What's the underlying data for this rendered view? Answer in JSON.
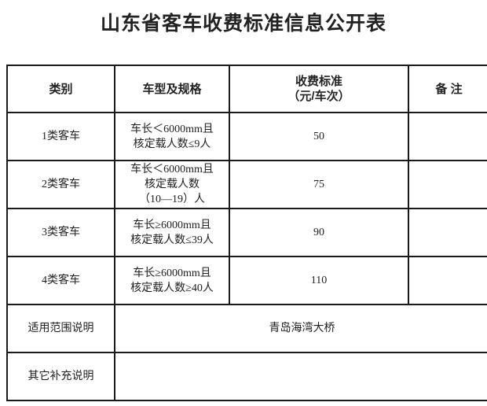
{
  "title": "山东省客车收费标准信息公开表",
  "headers": {
    "category": "类别",
    "model_spec": "车型及规格",
    "fee_line1": "收费标准",
    "fee_line2": "（元/车次）",
    "remarks": "备 注"
  },
  "rows": [
    {
      "category": "1类客车",
      "spec": [
        "车长＜6000mm且",
        "核定载人数≤9人"
      ],
      "fee": "50",
      "remarks": ""
    },
    {
      "category": "2类客车",
      "spec": [
        "车长＜6000mm且",
        "核定载人数",
        "（10—19）人"
      ],
      "fee": "75",
      "remarks": ""
    },
    {
      "category": "3类客车",
      "spec": [
        "车长≥6000mm且",
        "核定载人数≤39人"
      ],
      "fee": "90",
      "remarks": ""
    },
    {
      "category": "4类客车",
      "spec": [
        "车长≥6000mm且",
        "核定载人数≥40人"
      ],
      "fee": "110",
      "remarks": ""
    }
  ],
  "scope": {
    "label": "适用范围说明",
    "value": "青岛海湾大桥"
  },
  "supplement": {
    "label": "其它补充说明",
    "value": ""
  }
}
